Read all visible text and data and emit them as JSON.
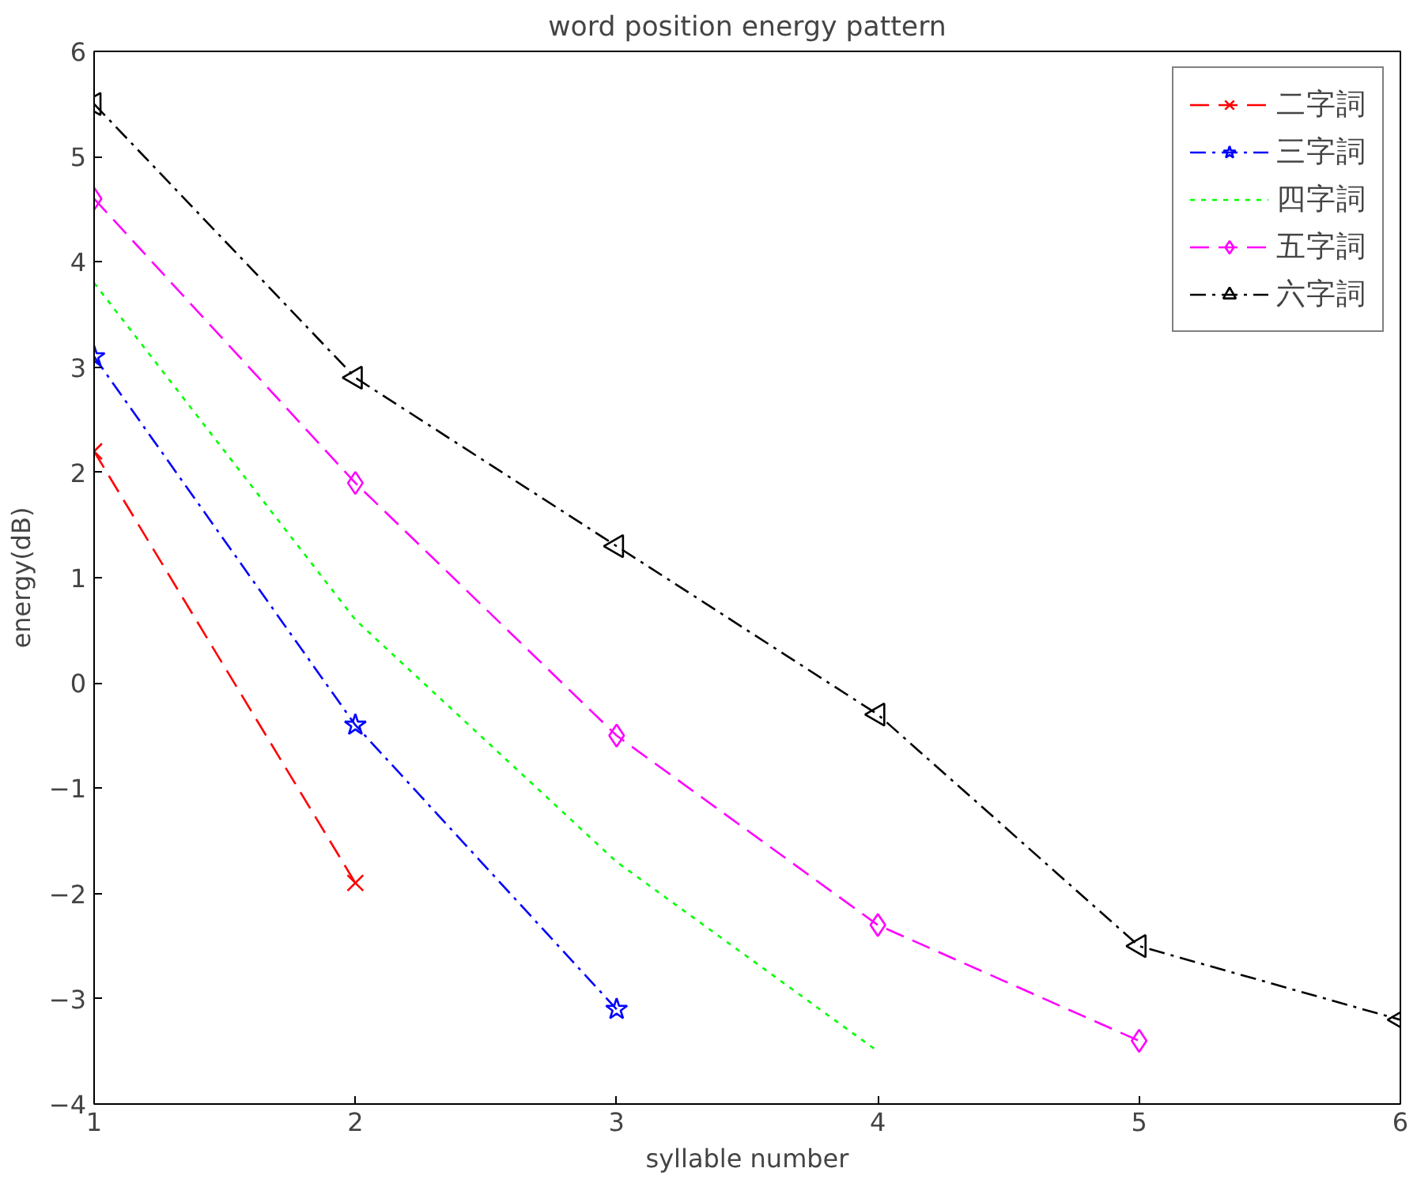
{
  "chart_data": {
    "type": "line",
    "title": "word position energy pattern",
    "xlabel": "syllable number",
    "ylabel": "energy(dB)",
    "xlim": [
      1,
      6
    ],
    "ylim": [
      -4,
      6
    ],
    "xticks": [
      1,
      2,
      3,
      4,
      5,
      6
    ],
    "yticks": [
      -4,
      -3,
      -2,
      -1,
      0,
      1,
      2,
      3,
      4,
      5,
      6
    ],
    "grid": false,
    "legend": "top right",
    "series": [
      {
        "name": "二字詞",
        "color": "#ff0000",
        "x": [
          1,
          2
        ],
        "values": [
          2.2,
          -1.9
        ],
        "marker": "cross",
        "line_style": "dashed"
      },
      {
        "name": "三字詞",
        "color": "#0000ff",
        "x": [
          1,
          2,
          3
        ],
        "values": [
          3.1,
          -0.4,
          -3.1
        ],
        "marker": "star",
        "line_style": "dashdot"
      },
      {
        "name": "四字詞",
        "color": "#00ff00",
        "x": [
          1,
          2,
          3,
          4
        ],
        "values": [
          3.8,
          0.6,
          -1.7,
          -3.5
        ],
        "marker": "none",
        "line_style": "dotted"
      },
      {
        "name": "五字詞",
        "color": "#ff00ff",
        "x": [
          1,
          2,
          3,
          4,
          5
        ],
        "values": [
          4.6,
          1.9,
          -0.5,
          -2.3,
          -3.4
        ],
        "marker": "diamond",
        "line_style": "dashed"
      },
      {
        "name": "六字詞",
        "color": "#000000",
        "x": [
          1,
          2,
          3,
          4,
          5,
          6
        ],
        "values": [
          5.5,
          2.9,
          1.3,
          -0.3,
          -2.5,
          -3.2
        ],
        "marker": "triangle",
        "line_style": "dashdot"
      }
    ]
  }
}
